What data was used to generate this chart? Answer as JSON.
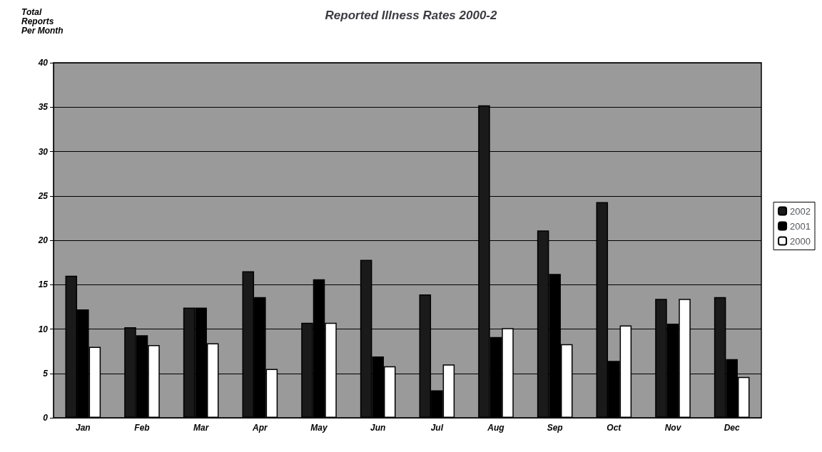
{
  "chart_data": {
    "type": "bar",
    "title": "Reported Illness Rates 2000-2",
    "ylabel": "Total\nReports\nPer Month",
    "categories": [
      "Jan",
      "Feb",
      "Mar",
      "Apr",
      "May",
      "Jun",
      "Jul",
      "Aug",
      "Sep",
      "Oct",
      "Nov",
      "Dec"
    ],
    "series": [
      {
        "name": "2002",
        "color": "#1a1a1a",
        "values": [
          16,
          10.2,
          12.4,
          16.5,
          10.7,
          17.8,
          13.9,
          35.2,
          21.1,
          24.3,
          13.4,
          13.6
        ]
      },
      {
        "name": "2001",
        "color": "#000000",
        "values": [
          12.2,
          9.3,
          12.4,
          13.6,
          15.6,
          6.9,
          3.1,
          9.1,
          16.2,
          6.4,
          10.6,
          6.6
        ]
      },
      {
        "name": "2000",
        "color": "#ffffff",
        "values": [
          8,
          8.2,
          8.4,
          5.5,
          10.7,
          5.8,
          6,
          10.1,
          8.3,
          10.4,
          13.4,
          4.6
        ]
      }
    ],
    "ylim": [
      0,
      40
    ],
    "yticks": [
      0,
      5,
      10,
      15,
      20,
      25,
      30,
      35,
      40
    ],
    "grid": true,
    "legend": "right"
  }
}
